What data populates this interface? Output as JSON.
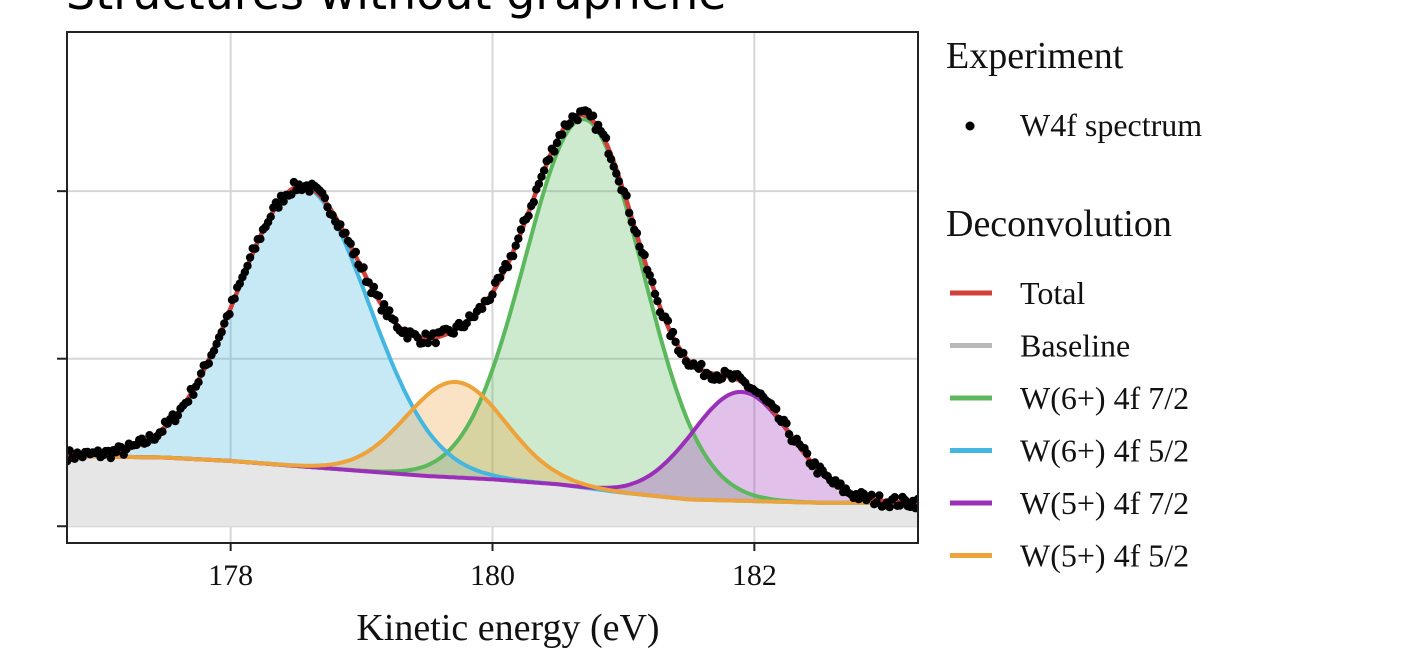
{
  "page_title": "Structures without graphene",
  "chart_data": {
    "type": "line",
    "title": "",
    "xlabel": "Kinetic energy (eV)",
    "ylabel": "",
    "xlim": [
      176.75,
      183.25
    ],
    "ylim": [
      -0.1,
      2.95
    ],
    "x_ticks": [
      178,
      180,
      182
    ],
    "x_tick_labels": [
      "178",
      "180",
      "182"
    ],
    "y_ticks": [
      0,
      1,
      2
    ],
    "y_tick_labels": [
      "",
      "",
      ""
    ],
    "grid": true,
    "legend_placement": "right",
    "legend": {
      "group_experiment": "Experiment",
      "group_deconvolution": "Deconvolution",
      "experiment_entries": [
        {
          "name": "W4f spectrum",
          "color": "#000000",
          "marker": "dot"
        }
      ],
      "deconvolution_entries": [
        {
          "name": "Total",
          "color": "#d2403a"
        },
        {
          "name": "Baseline",
          "color": "#b8b8b8"
        },
        {
          "name": "W(6+) 4f 7/2",
          "color": "#5cb85c"
        },
        {
          "name": "W(6+) 4f 5/2",
          "color": "#45b6e0"
        },
        {
          "name": "W(5+) 4f 7/2",
          "color": "#9b30b8"
        },
        {
          "name": "W(5+) 4f 5/2",
          "color": "#eea23a"
        }
      ]
    },
    "baseline": {
      "name": "Baseline",
      "color": "#b8b8b8",
      "x": [
        176.75,
        177.5,
        178,
        178.5,
        179,
        179.5,
        180,
        180.5,
        181,
        181.5,
        182,
        182.5,
        183.25
      ],
      "y": [
        0.42,
        0.41,
        0.39,
        0.36,
        0.33,
        0.3,
        0.28,
        0.25,
        0.2,
        0.16,
        0.15,
        0.14,
        0.14
      ]
    },
    "series": [
      {
        "name": "W(6+) 4f 7/2",
        "color": "#5cb85c",
        "center": 180.7,
        "amplitude": 2.2,
        "sigma": 0.45
      },
      {
        "name": "W(6+) 4f 5/2",
        "color": "#45b6e0",
        "center": 178.55,
        "amplitude": 1.67,
        "sigma": 0.5
      },
      {
        "name": "W(5+) 4f 7/2",
        "color": "#9b30b8",
        "center": 181.9,
        "amplitude": 0.65,
        "sigma": 0.38
      },
      {
        "name": "W(5+) 4f 5/2",
        "color": "#eea23a",
        "center": 179.72,
        "amplitude": 0.57,
        "sigma": 0.38
      }
    ],
    "total": {
      "name": "Total",
      "color": "#d2403a"
    },
    "experiment": {
      "name": "W4f spectrum",
      "color": "#000000"
    }
  }
}
